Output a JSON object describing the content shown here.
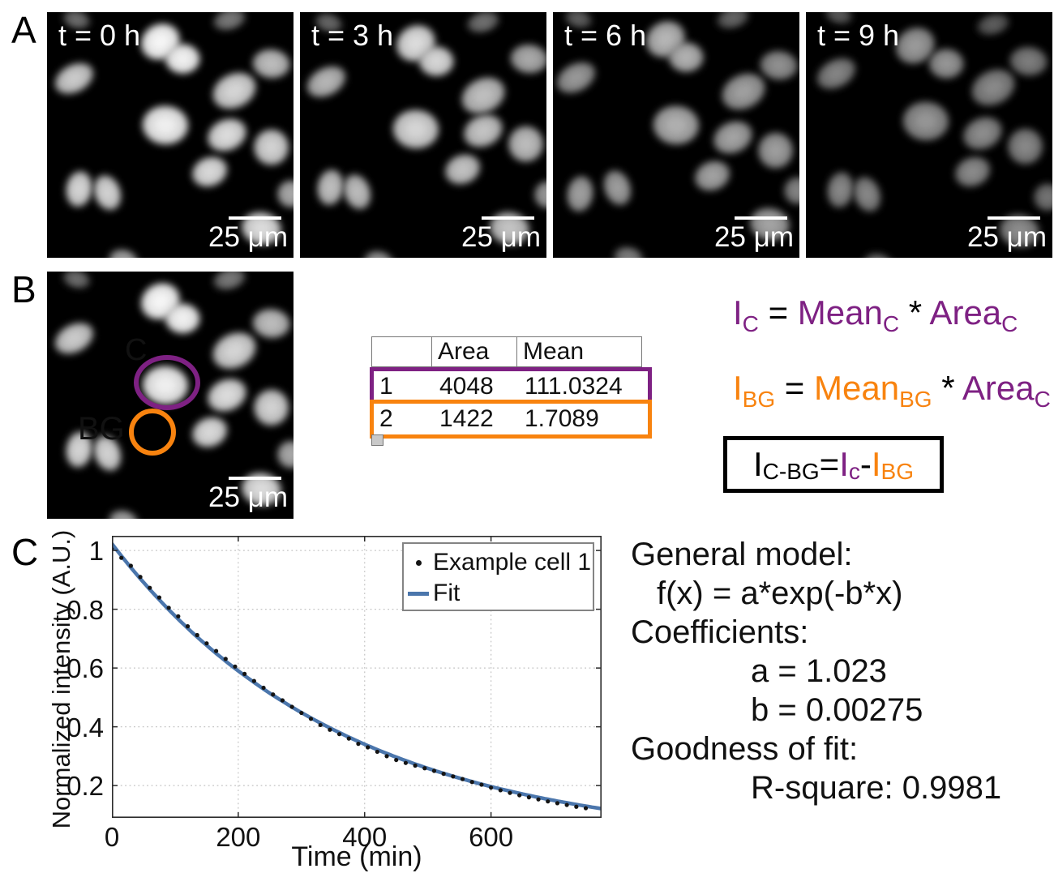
{
  "colors": {
    "purple": "#7E2183",
    "orange": "#F8830F",
    "black": "#000000",
    "fit_blue": "#4B76AC",
    "scatter_black": "#141414",
    "table_header_bg": "#C9C9C9",
    "grid_gray": "#C4C4C4"
  },
  "figure": {
    "panel_a": {
      "label": "A",
      "frames": [
        {
          "time_label": "t = 0 h",
          "scalebar": "25 μm"
        },
        {
          "time_label": "t = 3 h",
          "scalebar": "25 μm"
        },
        {
          "time_label": "t = 6 h",
          "scalebar": "25 μm"
        },
        {
          "time_label": "t = 9 h",
          "scalebar": "25 μm"
        }
      ]
    },
    "panel_b": {
      "label": "B",
      "image": {
        "roi_c_label": "C",
        "roi_bg_label": "BG",
        "scalebar": "25 μm"
      },
      "table": {
        "headers": [
          "",
          "Area",
          "Mean"
        ],
        "rows": [
          {
            "id": "1",
            "area": "4048",
            "mean": "111.0324",
            "highlight": "purple"
          },
          {
            "id": "2",
            "area": "1422",
            "mean": "1.7089",
            "highlight": "orange"
          }
        ]
      },
      "equations": [
        {
          "text": "I_C = Mean_C * Area_C",
          "tokens": [
            {
              "t": "I",
              "c": "purple"
            },
            {
              "t": "C",
              "c": "purple",
              "sub": true
            },
            {
              "t": " = ",
              "c": "black"
            },
            {
              "t": "Mean",
              "c": "purple"
            },
            {
              "t": "C",
              "c": "purple",
              "sub": true
            },
            {
              "t": " * ",
              "c": "black"
            },
            {
              "t": "Area",
              "c": "purple"
            },
            {
              "t": "C",
              "c": "purple",
              "sub": true
            }
          ]
        },
        {
          "text": "I_BG = Mean_BG * Area_C",
          "tokens": [
            {
              "t": "I",
              "c": "orange"
            },
            {
              "t": "BG",
              "c": "orange",
              "sub": true
            },
            {
              "t": " = ",
              "c": "black"
            },
            {
              "t": "Mean",
              "c": "orange"
            },
            {
              "t": "BG",
              "c": "orange",
              "sub": true
            },
            {
              "t": " * ",
              "c": "black"
            },
            {
              "t": "Area",
              "c": "purple"
            },
            {
              "t": "C",
              "c": "purple",
              "sub": true
            }
          ]
        },
        {
          "text": "I_C-BG = I_c - I_BG",
          "tokens": [
            {
              "t": "I",
              "c": "black"
            },
            {
              "t": "C-BG",
              "c": "black",
              "sub": true
            },
            {
              "t": " = ",
              "c": "black"
            },
            {
              "t": "I",
              "c": "purple"
            },
            {
              "t": "c",
              "c": "purple",
              "sub": true
            },
            {
              "t": " - ",
              "c": "black"
            },
            {
              "t": "I",
              "c": "orange"
            },
            {
              "t": "BG",
              "c": "orange",
              "sub": true
            }
          ]
        }
      ]
    },
    "panel_c": {
      "label": "C",
      "fit_results": [
        {
          "text": "General model:",
          "indent": 0
        },
        {
          "text": "f(x) = a*exp(-b*x)",
          "indent": 1
        },
        {
          "text": "Coefficients:",
          "indent": 0
        },
        {
          "text": "a = 1.023",
          "indent": 2
        },
        {
          "text": "b = 0.00275",
          "indent": 2
        },
        {
          "text": "Goodness of fit:",
          "indent": 0
        },
        {
          "text": "R-square: 0.9981",
          "indent": 2
        }
      ]
    }
  },
  "chart_data": {
    "type": "scatter",
    "title": "",
    "xlabel": "Time (min)",
    "ylabel": "Normalized intensity (A.U.)",
    "xlim": [
      0,
      775
    ],
    "ylim": [
      0.09,
      1.05
    ],
    "xticks": [
      0,
      200,
      400,
      600
    ],
    "yticks": [
      0.2,
      0.4,
      0.6,
      0.8,
      1
    ],
    "ytick_labels": [
      "0.2",
      "0.4",
      "0.6",
      "0.8",
      "1"
    ],
    "grid": true,
    "legend": {
      "position": "top-right",
      "entries": [
        {
          "label": "Example cell 1",
          "marker": "dot"
        },
        {
          "label": "Fit",
          "marker": "line"
        }
      ]
    },
    "series": [
      {
        "name": "Example cell 1",
        "type": "scatter",
        "x": [
          0,
          15,
          30,
          45,
          60,
          75,
          90,
          105,
          120,
          135,
          150,
          165,
          180,
          195,
          210,
          225,
          240,
          255,
          270,
          285,
          300,
          315,
          330,
          345,
          360,
          375,
          390,
          405,
          420,
          435,
          450,
          465,
          480,
          495,
          510,
          525,
          540,
          555,
          570,
          585,
          600,
          615,
          630,
          645,
          660,
          675,
          690,
          705,
          720,
          735,
          750
        ],
        "y": [
          1.005,
          0.975,
          0.948,
          0.91,
          0.873,
          0.84,
          0.805,
          0.776,
          0.742,
          0.712,
          0.684,
          0.658,
          0.631,
          0.605,
          0.58,
          0.556,
          0.533,
          0.51,
          0.49,
          0.468,
          0.447,
          0.427,
          0.406,
          0.39,
          0.375,
          0.36,
          0.342,
          0.33,
          0.315,
          0.3,
          0.287,
          0.277,
          0.268,
          0.259,
          0.25,
          0.24,
          0.231,
          0.222,
          0.212,
          0.203,
          0.193,
          0.184,
          0.175,
          0.167,
          0.16,
          0.153,
          0.146,
          0.14,
          0.134,
          0.128,
          0.123
        ]
      },
      {
        "name": "Fit",
        "type": "line",
        "model": "f(x) = a*exp(-b*x)",
        "a": 1.023,
        "b": 0.00275
      }
    ]
  }
}
